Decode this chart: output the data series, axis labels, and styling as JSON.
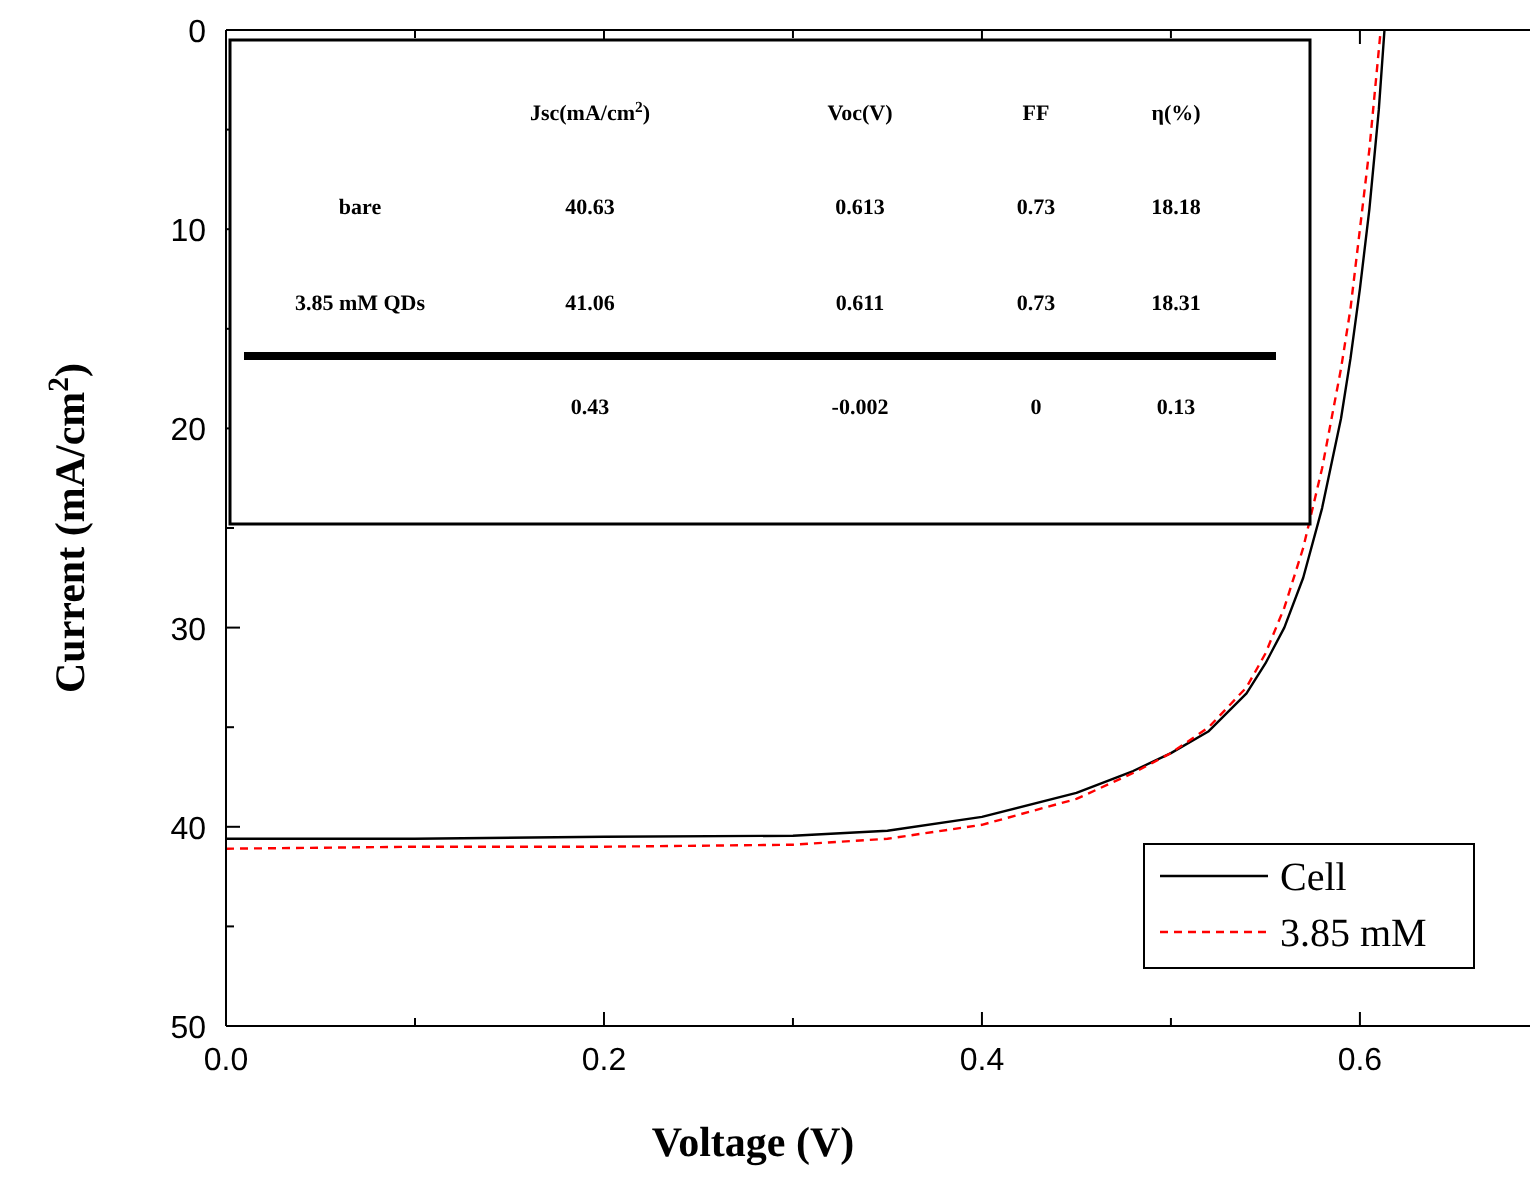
{
  "chart_data": {
    "type": "line",
    "xlabel": "Voltage (V)",
    "ylabel": "Current (mA/cm$^{2}$)",
    "xlim": [
      0,
      0.69
    ],
    "ylim": [
      50,
      0
    ],
    "xticks": [
      {
        "value": 0,
        "label": "0.0"
      },
      {
        "value": 0.1,
        "label": null
      },
      {
        "value": 0.2,
        "label": "0.2"
      },
      {
        "value": 0.3,
        "label": null
      },
      {
        "value": 0.4,
        "label": "0.4"
      },
      {
        "value": 0.5,
        "label": null
      },
      {
        "value": 0.6,
        "label": "0.6"
      }
    ],
    "yticks": [
      0,
      {
        "value": 5,
        "label": null
      },
      10,
      {
        "value": 15,
        "label": null
      },
      20,
      {
        "value": 25,
        "label": null
      },
      30,
      {
        "value": 35,
        "label": null
      },
      40,
      {
        "value": 45,
        "label": null
      },
      50
    ],
    "grid": false,
    "legend": "bottom right",
    "marker": "none",
    "series": [
      {
        "name": "Cell",
        "color": "#000000",
        "line_style": "solid",
        "x": [
          0,
          0.1,
          0.2,
          0.3,
          0.35,
          0.4,
          0.45,
          0.48,
          0.5,
          0.52,
          0.54,
          0.55,
          0.56,
          0.57,
          0.58,
          0.59,
          0.595,
          0.6,
          0.605,
          0.61,
          0.613
        ],
        "values": [
          40.6,
          40.6,
          40.5,
          40.45,
          40.2,
          39.5,
          38.3,
          37.2,
          36.3,
          35.2,
          33.3,
          31.8,
          30,
          27.5,
          24,
          19.5,
          16.5,
          13,
          9,
          4,
          0
        ]
      },
      {
        "name": "3.85 mM",
        "color": "#ff0000",
        "line_style": "dashed",
        "x": [
          0,
          0.1,
          0.2,
          0.3,
          0.35,
          0.4,
          0.45,
          0.48,
          0.5,
          0.52,
          0.54,
          0.55,
          0.56,
          0.57,
          0.58,
          0.59,
          0.595,
          0.6,
          0.605,
          0.611
        ],
        "values": [
          41.1,
          41,
          41,
          40.9,
          40.6,
          39.9,
          38.6,
          37.3,
          36.3,
          35,
          33,
          31.3,
          29,
          26,
          22,
          17,
          14,
          10,
          6,
          0
        ]
      }
    ],
    "annotations": [
      "Jsc(mA/cm$^{2}$)",
      "Voc(V)",
      "FF",
      "η(%)",
      "bare",
      "40.63",
      "0.613",
      "0.73",
      "18.18",
      "3.85 mM QDs",
      "41.06",
      "0.611",
      "0.73",
      "18.31",
      "0.43",
      "-0.002",
      "0",
      "0.13"
    ]
  }
}
